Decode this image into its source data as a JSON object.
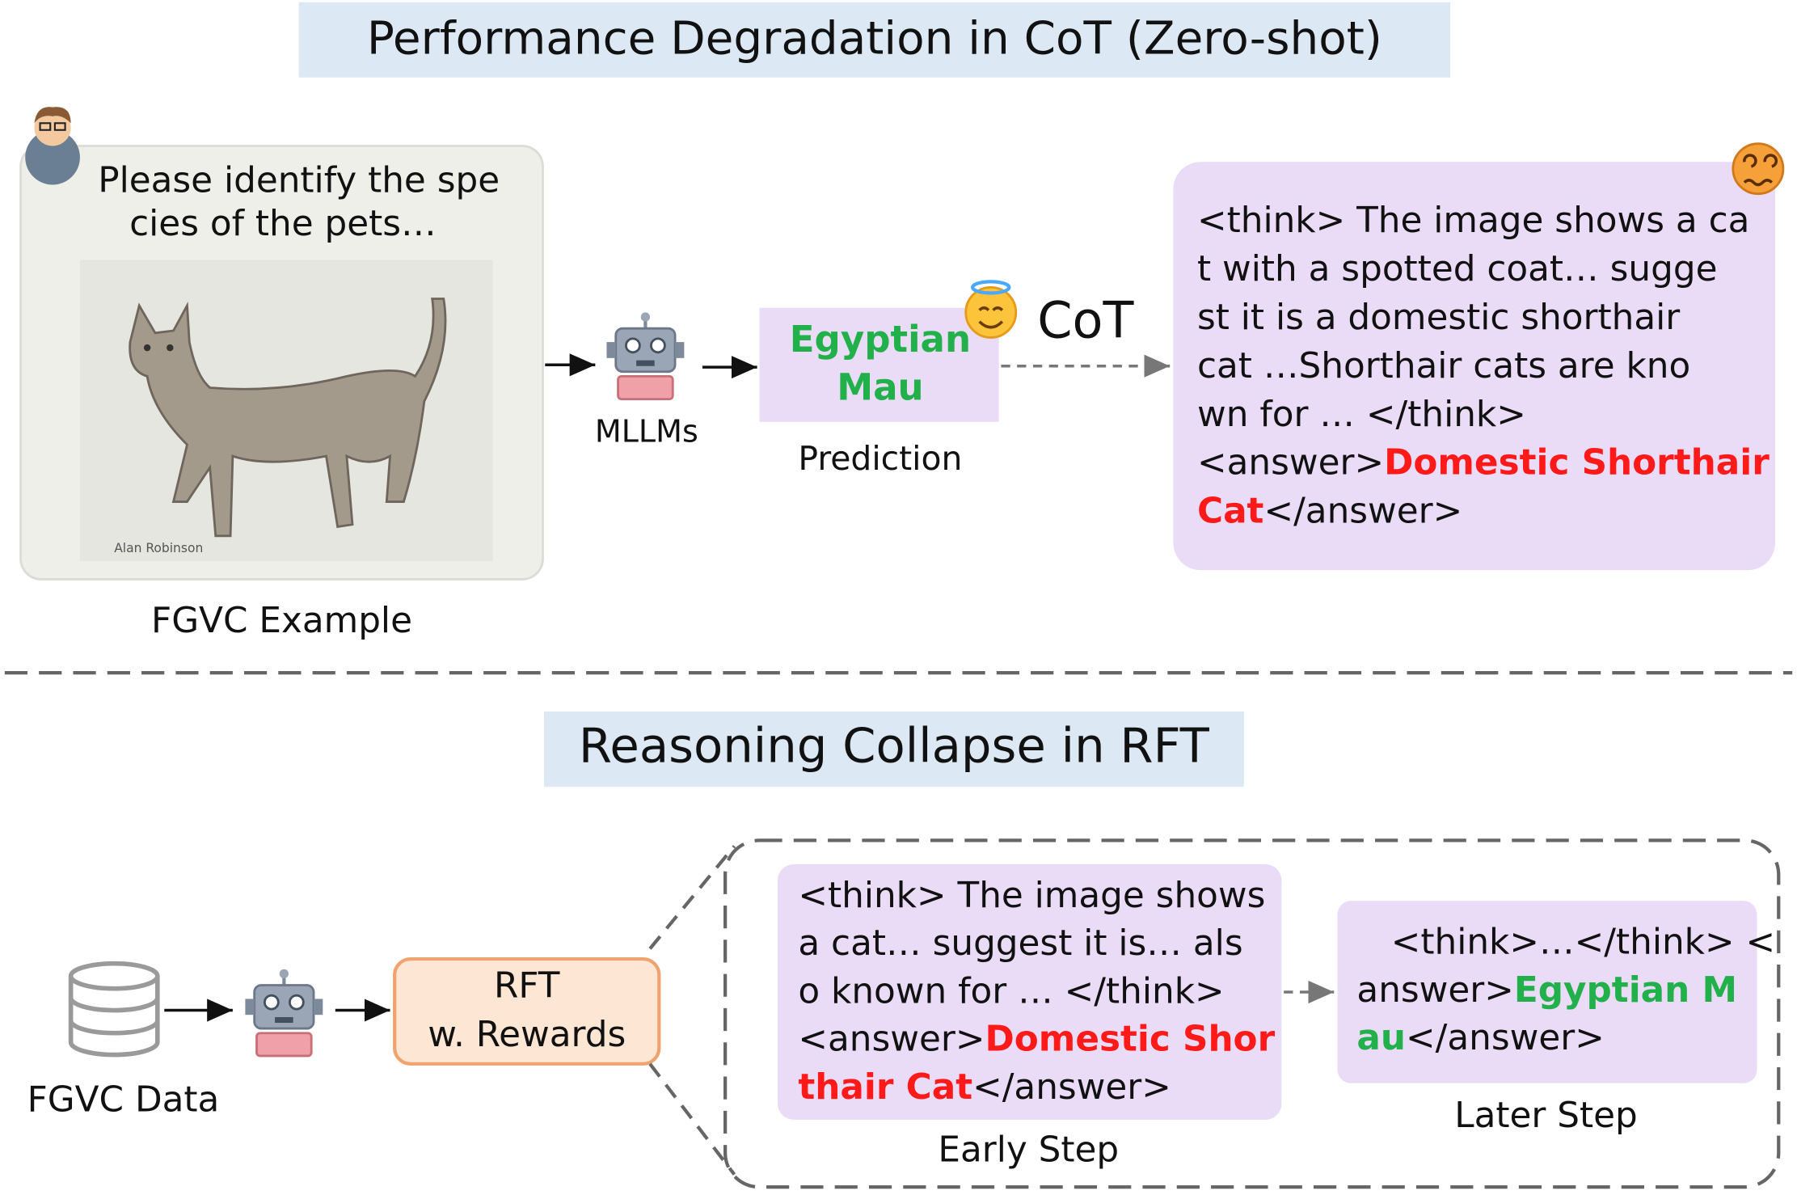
{
  "top": {
    "title": "Performance Degradation in CoT (Zero-shot)",
    "prompt": [
      "Please identify the spe",
      "cies of the pets…"
    ],
    "image_credit": "Alan Robinson",
    "example_label": "FGVC Example",
    "model_label": "MLLMs",
    "prediction": [
      "Egyptian",
      "Mau"
    ],
    "prediction_label": "Prediction",
    "cot_label": "CoT",
    "cot_output": [
      [
        {
          "text": "<think> The image shows a ca"
        }
      ],
      [
        {
          "text": "t with a spotted coat… sugge"
        }
      ],
      [
        {
          "text": "st it is a domestic shorthair"
        }
      ],
      [
        {
          "text": "cat …Shorthair cats are kno"
        }
      ],
      [
        {
          "text": "wn for … </think>"
        }
      ],
      [
        {
          "text": "<answer>"
        },
        {
          "text": "Domestic Shorthair",
          "color": "#ff1a1a"
        }
      ],
      [
        {
          "text": "Cat",
          "color": "#ff1a1a"
        },
        {
          "text": "</answer>"
        }
      ]
    ]
  },
  "bottom": {
    "title": "Reasoning Collapse in RFT",
    "data_label": "FGVC Data",
    "rft": [
      "RFT",
      "w. Rewards"
    ],
    "early_output": [
      [
        {
          "text": "<think> The image shows"
        }
      ],
      [
        {
          "text": "a cat… suggest it is… als"
        }
      ],
      [
        {
          "text": "o known for … </think>"
        }
      ],
      [
        {
          "text": "<answer>"
        },
        {
          "text": "Domestic Shor",
          "color": "#ff1a1a"
        }
      ],
      [
        {
          "text": "thair Cat",
          "color": "#ff1a1a"
        },
        {
          "text": "</answer>"
        }
      ]
    ],
    "early_label": "Early Step",
    "later_output": [
      [
        {
          "text": "<think>…</think> <"
        }
      ],
      [
        {
          "text": "answer>"
        },
        {
          "text": "Egyptian M",
          "color": "#22b04a"
        }
      ],
      [
        {
          "text": "au",
          "color": "#22b04a"
        },
        {
          "text": "</answer>"
        }
      ]
    ],
    "later_label": "Later Step"
  }
}
